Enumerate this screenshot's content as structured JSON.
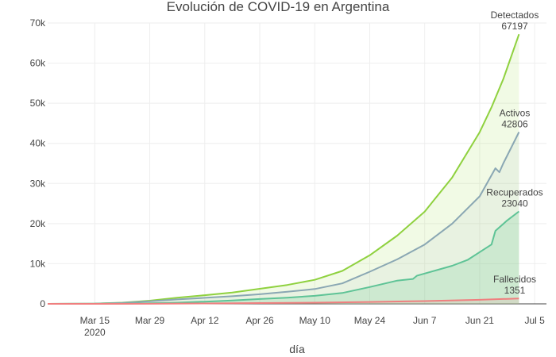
{
  "chart_data": {
    "type": "area",
    "title": "Evolución de COVID-19 en Argentina",
    "xlabel": "día",
    "ylabel": "",
    "x_range": [
      "2020-03-03",
      "2020-07-08"
    ],
    "ylim": [
      0,
      70000
    ],
    "y_ticks": [
      {
        "value": 0,
        "label": "0"
      },
      {
        "value": 10000,
        "label": "10k"
      },
      {
        "value": 20000,
        "label": "20k"
      },
      {
        "value": 30000,
        "label": "30k"
      },
      {
        "value": 40000,
        "label": "40k"
      },
      {
        "value": 50000,
        "label": "50k"
      },
      {
        "value": 60000,
        "label": "60k"
      },
      {
        "value": 70000,
        "label": "70k"
      }
    ],
    "x_ticks": [
      {
        "date": "2020-03-15",
        "label": "Mar 15",
        "sublabel": "2020"
      },
      {
        "date": "2020-03-29",
        "label": "Mar 29",
        "sublabel": ""
      },
      {
        "date": "2020-04-12",
        "label": "Apr 12",
        "sublabel": ""
      },
      {
        "date": "2020-04-26",
        "label": "Apr 26",
        "sublabel": ""
      },
      {
        "date": "2020-05-10",
        "label": "May 10",
        "sublabel": ""
      },
      {
        "date": "2020-05-24",
        "label": "May 24",
        "sublabel": ""
      },
      {
        "date": "2020-06-07",
        "label": "Jun 7",
        "sublabel": ""
      },
      {
        "date": "2020-06-21",
        "label": "Jun 21",
        "sublabel": ""
      },
      {
        "date": "2020-07-05",
        "label": "Jul 5",
        "sublabel": ""
      }
    ],
    "grid": true,
    "series": [
      {
        "color": "#8fd13f",
        "fill": "rgba(180,225,110,0.18)",
        "label_line1": "Detectados",
        "label_line2": "67197",
        "points": [
          [
            "2020-03-03",
            0
          ],
          [
            "2020-03-10",
            20
          ],
          [
            "2020-03-15",
            50
          ],
          [
            "2020-03-22",
            300
          ],
          [
            "2020-03-29",
            800
          ],
          [
            "2020-04-05",
            1550
          ],
          [
            "2020-04-12",
            2150
          ],
          [
            "2020-04-19",
            2800
          ],
          [
            "2020-04-26",
            3750
          ],
          [
            "2020-05-03",
            4700
          ],
          [
            "2020-05-10",
            6000
          ],
          [
            "2020-05-17",
            8200
          ],
          [
            "2020-05-24",
            12100
          ],
          [
            "2020-05-31",
            17000
          ],
          [
            "2020-06-07",
            23000
          ],
          [
            "2020-06-14",
            31500
          ],
          [
            "2020-06-21",
            42800
          ],
          [
            "2020-06-24",
            49000
          ],
          [
            "2020-06-27",
            56000
          ],
          [
            "2020-07-01",
            67197
          ]
        ]
      },
      {
        "color": "#8aa7b3",
        "fill": "rgba(170,190,200,0.12)",
        "label_line1": "Activos",
        "label_line2": "42806",
        "points": [
          [
            "2020-03-03",
            0
          ],
          [
            "2020-03-10",
            15
          ],
          [
            "2020-03-15",
            40
          ],
          [
            "2020-03-22",
            250
          ],
          [
            "2020-03-29",
            650
          ],
          [
            "2020-04-05",
            1100
          ],
          [
            "2020-04-12",
            1500
          ],
          [
            "2020-04-19",
            1900
          ],
          [
            "2020-04-26",
            2400
          ],
          [
            "2020-05-03",
            3000
          ],
          [
            "2020-05-10",
            3700
          ],
          [
            "2020-05-17",
            5100
          ],
          [
            "2020-05-24",
            8000
          ],
          [
            "2020-05-31",
            11100
          ],
          [
            "2020-06-07",
            14800
          ],
          [
            "2020-06-14",
            20000
          ],
          [
            "2020-06-21",
            26800
          ],
          [
            "2020-06-25",
            33800
          ],
          [
            "2020-06-26",
            32800
          ],
          [
            "2020-06-27",
            35000
          ],
          [
            "2020-07-01",
            42806
          ]
        ]
      },
      {
        "color": "#5ec396",
        "fill": "rgba(110,200,150,0.22)",
        "label_line1": "Recuperados",
        "label_line2": "23040",
        "points": [
          [
            "2020-03-03",
            0
          ],
          [
            "2020-03-22",
            50
          ],
          [
            "2020-03-29",
            150
          ],
          [
            "2020-04-05",
            300
          ],
          [
            "2020-04-12",
            550
          ],
          [
            "2020-04-19",
            850
          ],
          [
            "2020-04-26",
            1200
          ],
          [
            "2020-05-03",
            1550
          ],
          [
            "2020-05-10",
            2000
          ],
          [
            "2020-05-17",
            2700
          ],
          [
            "2020-05-24",
            4200
          ],
          [
            "2020-05-31",
            5800
          ],
          [
            "2020-06-04",
            6200
          ],
          [
            "2020-06-05",
            7000
          ],
          [
            "2020-06-14",
            9500
          ],
          [
            "2020-06-18",
            11000
          ],
          [
            "2020-06-21",
            12900
          ],
          [
            "2020-06-24",
            14800
          ],
          [
            "2020-06-25",
            18200
          ],
          [
            "2020-06-28",
            20800
          ],
          [
            "2020-07-01",
            23040
          ]
        ]
      },
      {
        "color": "#ef7f7f",
        "fill": "rgba(240,140,140,0.15)",
        "label_line1": "Fallecidos",
        "label_line2": "1351",
        "points": [
          [
            "2020-03-03",
            0
          ],
          [
            "2020-03-29",
            20
          ],
          [
            "2020-04-12",
            100
          ],
          [
            "2020-04-26",
            200
          ],
          [
            "2020-05-10",
            300
          ],
          [
            "2020-05-24",
            480
          ],
          [
            "2020-06-07",
            700
          ],
          [
            "2020-06-21",
            1000
          ],
          [
            "2020-07-01",
            1351
          ]
        ]
      }
    ]
  }
}
